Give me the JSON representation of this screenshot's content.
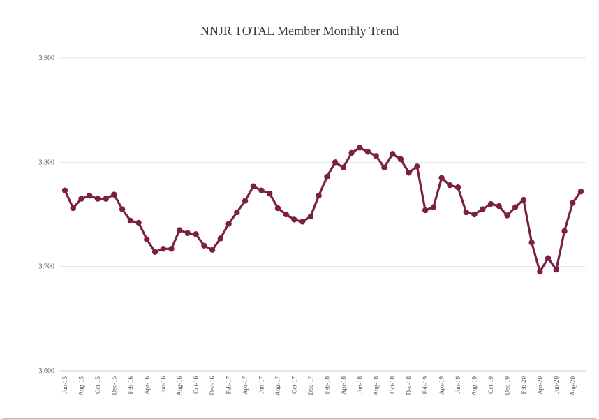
{
  "chart_data": {
    "type": "line",
    "title": "NNJR TOTAL Member Monthly Trend",
    "xlabel": "",
    "ylabel": "",
    "ylim": [
      3600,
      3900
    ],
    "yticks": [
      "3,600",
      "3,700",
      "3,800",
      "3,900"
    ],
    "ytick_values": [
      3600,
      3700,
      3800,
      3900
    ],
    "grid": true,
    "legend": "none",
    "color": "#7b1f45",
    "x": [
      "Jun-15",
      "Jul-15",
      "Aug-15",
      "Sep-15",
      "Oct-15",
      "Nov-15",
      "Dec-15",
      "Jan-16",
      "Feb-16",
      "Mar-16",
      "Apr-16",
      "May-16",
      "Jun-16",
      "Jul-16",
      "Aug-16",
      "Sep-16",
      "Oct-16",
      "Nov-16",
      "Dec-16",
      "Jan-17",
      "Feb-17",
      "Mar-17",
      "Apr-17",
      "May-17",
      "Jun-17",
      "Jul-17",
      "Aug-17",
      "Sep-17",
      "Oct-17",
      "Nov-17",
      "Dec-17",
      "Jan-18",
      "Feb-18",
      "Mar-18",
      "Apr-18",
      "May-18",
      "Jun-18",
      "Jul-18",
      "Aug-18",
      "Sep-18",
      "Oct-18",
      "Nov-18",
      "Dec-18",
      "Jan-19",
      "Feb-19",
      "Mar-19",
      "Apr-19",
      "May-19",
      "Jun-19",
      "Jul-19",
      "Aug-19",
      "Sep-19",
      "Oct-19",
      "Nov-19",
      "Dec-19",
      "Jan-20",
      "Feb-20",
      "Mar-20",
      "Apr-20",
      "May-20",
      "Jun-20",
      "Jul-20",
      "Aug-20",
      "Sep-20"
    ],
    "x_tick_labels": [
      "Jun-15",
      "Aug-15",
      "Oct-15",
      "Dec-15",
      "Feb-16",
      "Apr-16",
      "Jun-16",
      "Aug-16",
      "Oct-16",
      "Dec-16",
      "Feb-17",
      "Apr-17",
      "Jun-17",
      "Aug-17",
      "Oct-17",
      "Dec-17",
      "Feb-18",
      "Apr-18",
      "Jun-18",
      "Aug-18",
      "Oct-18",
      "Dec-18",
      "Feb-19",
      "Apr-19",
      "Jun-19",
      "Aug-19",
      "Oct-19",
      "Dec-19",
      "Feb-20",
      "Apr-20",
      "Jun-20",
      "Aug-20"
    ],
    "values": [
      3773,
      3756,
      3765,
      3768,
      3765,
      3765,
      3769,
      3755,
      3744,
      3742,
      3726,
      3714,
      3717,
      3717,
      3735,
      3732,
      3731,
      3720,
      3716,
      3727,
      3741,
      3752,
      3763,
      3777,
      3773,
      3770,
      3756,
      3750,
      3745,
      3743,
      3748,
      3768,
      3786,
      3800,
      3795,
      3809,
      3814,
      3810,
      3806,
      3795,
      3808,
      3803,
      3790,
      3796,
      3754,
      3757,
      3785,
      3778,
      3776,
      3752,
      3750,
      3755,
      3760,
      3758,
      3749,
      3757,
      3764,
      3723,
      3695,
      3708,
      3697,
      3734,
      3761,
      3772
    ]
  }
}
